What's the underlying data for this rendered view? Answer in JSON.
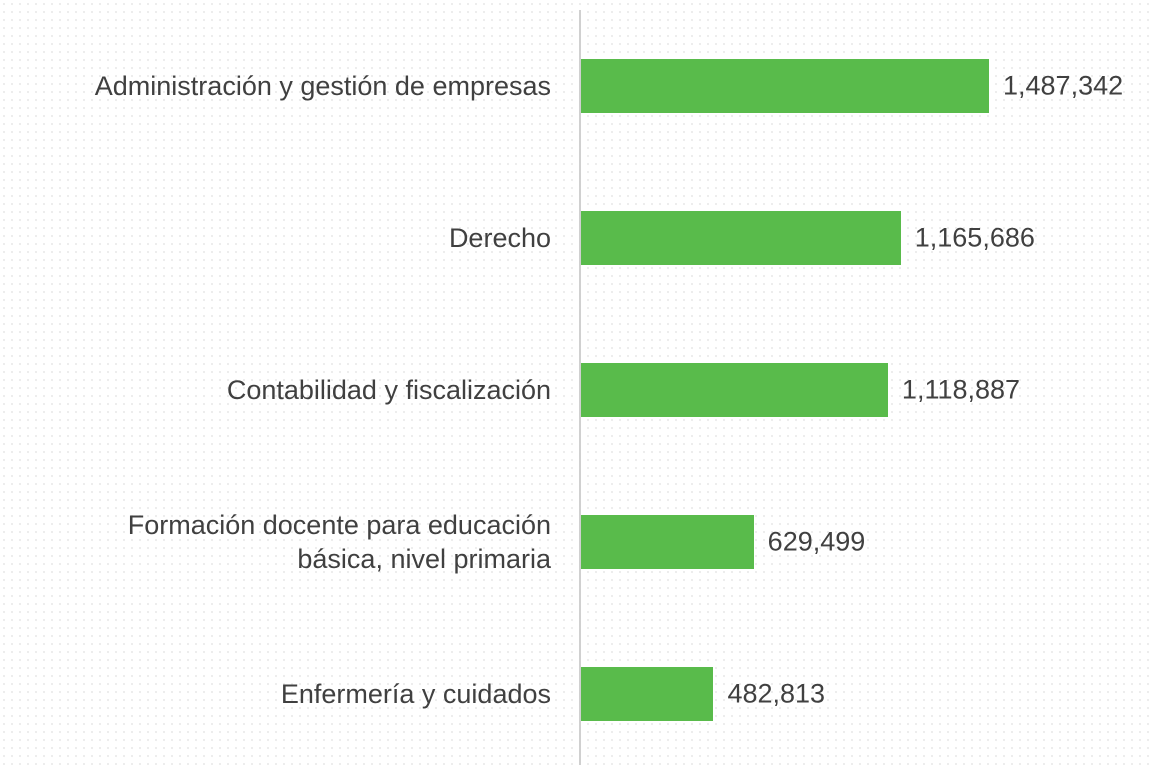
{
  "chart_data": {
    "type": "bar",
    "orientation": "horizontal",
    "categories": [
      "Administración y gestión de empresas",
      "Derecho",
      "Contabilidad y fiscalización",
      "Formación docente para educación\nbásica, nivel primaria",
      "Enfermería y cuidados"
    ],
    "values": [
      1487342,
      1165686,
      1118887,
      629499,
      482813
    ],
    "value_labels": [
      "1,487,342",
      "1,165,686",
      "1,118,887",
      "629,499",
      "482,813"
    ],
    "color": "#59bb4b"
  }
}
